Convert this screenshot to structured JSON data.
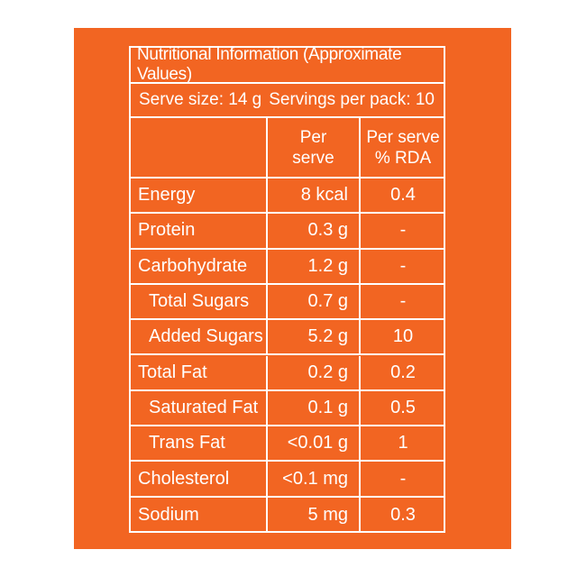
{
  "label": {
    "title": "Nutritional Information (Approximate Values)",
    "serve_size": "Serve size: 14 g",
    "servings_per_pack": "Servings per pack: 10",
    "col_per_serve_line1": "Per",
    "col_per_serve_line2": "serve",
    "col_rda_line1": "Per serve",
    "col_rda_line2": "% RDA",
    "rows": [
      {
        "name": "Energy",
        "per_serve": "8 kcal",
        "rda": "0.4"
      },
      {
        "name": "Protein",
        "per_serve": "0.3 g",
        "rda": "-"
      },
      {
        "name": "Carbohydrate",
        "per_serve": "1.2 g",
        "rda": "-"
      },
      {
        "name": "Total Sugars",
        "per_serve": "0.7 g",
        "rda": "-"
      },
      {
        "name": "Added Sugars",
        "per_serve": "5.2 g",
        "rda": "10"
      },
      {
        "name": "Total Fat",
        "per_serve": "0.2 g",
        "rda": "0.2"
      },
      {
        "name": "Saturated Fat",
        "per_serve": "0.1 g",
        "rda": "0.5"
      },
      {
        "name": "Trans Fat",
        "per_serve": "<0.01 g",
        "rda": "1"
      },
      {
        "name": "Cholesterol",
        "per_serve": "<0.1 mg",
        "rda": "-"
      },
      {
        "name": "Sodium",
        "per_serve": "5 mg",
        "rda": "0.3"
      }
    ]
  },
  "colors": {
    "panel": "#f26522",
    "text": "#ffffff"
  }
}
